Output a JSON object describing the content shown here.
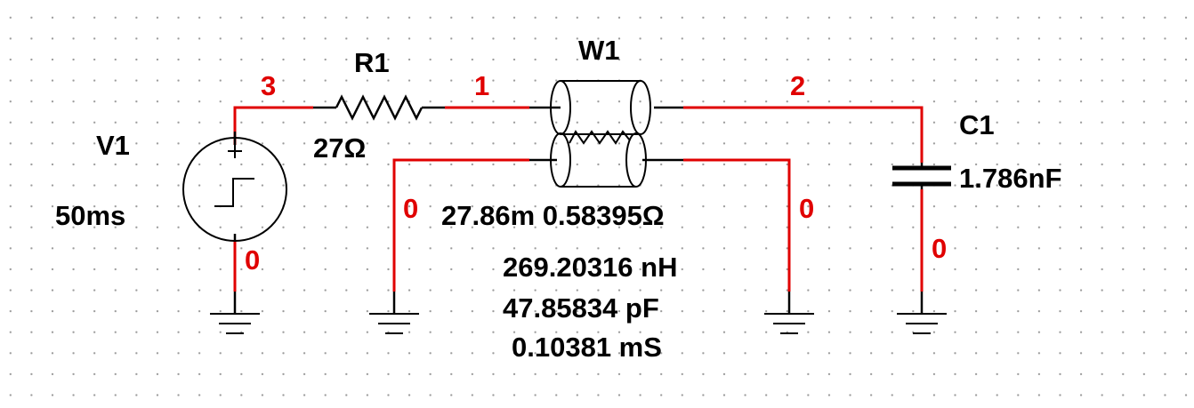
{
  "schematic": {
    "source": {
      "ref": "V1",
      "value": "50ms"
    },
    "resistor": {
      "ref": "R1",
      "value": "27Ω"
    },
    "line": {
      "ref": "W1",
      "length_resistance": "27.86m 0.58395Ω",
      "inductance": "269.20316 nH",
      "capacitance": "47.85834 pF",
      "conductance": "0.10381 mS"
    },
    "capacitor": {
      "ref": "C1",
      "value": "1.786nF"
    },
    "nets": {
      "n3": "3",
      "n1": "1",
      "n2": "2",
      "gnd_v1": "0",
      "gnd_w1_left": "0",
      "gnd_w1_right": "0",
      "gnd_c1": "0"
    }
  },
  "colors": {
    "wire": "#e00000",
    "component": "#000000",
    "grid_dot": "#9a9a9a"
  }
}
